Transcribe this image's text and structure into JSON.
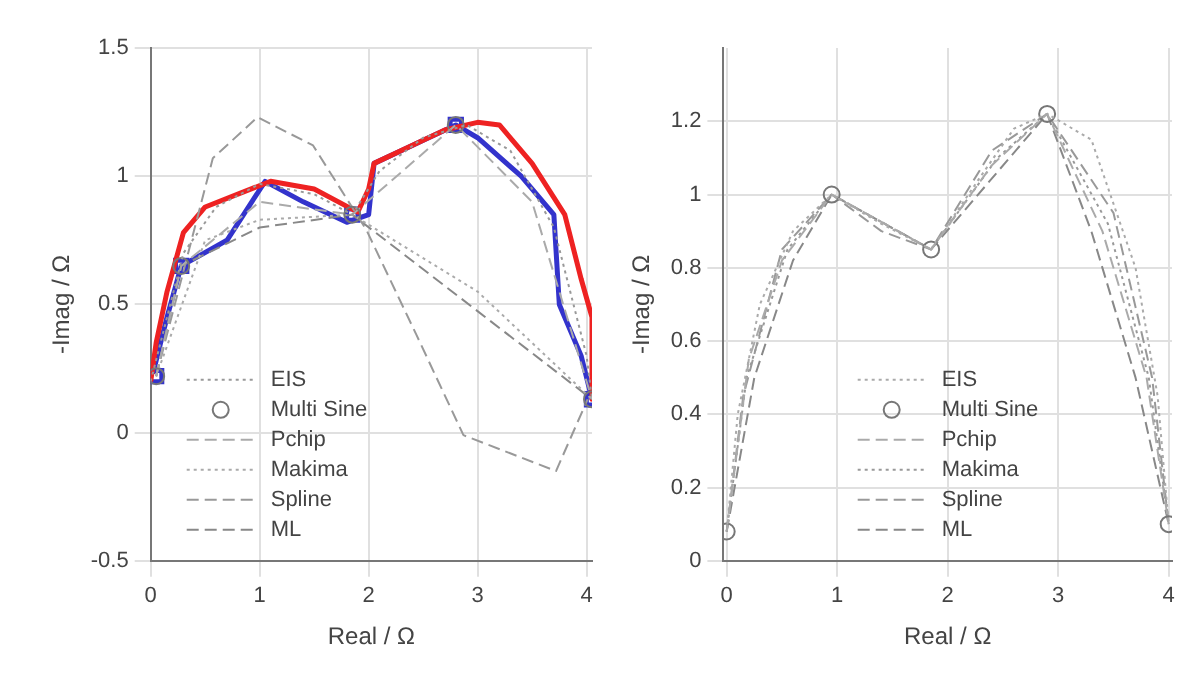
{
  "chart_data": [
    {
      "type": "line",
      "xlabel": "Real / Ω",
      "ylabel": "-Imag / Ω",
      "xlim": [
        0,
        4.05
      ],
      "ylim": [
        -0.5,
        1.5
      ],
      "xticks": [
        0,
        1,
        2,
        3,
        4
      ],
      "yticks": [
        -0.5,
        0,
        0.5,
        1,
        1.5
      ],
      "grid": true,
      "legend": "bottom left",
      "series": [
        {
          "name": "EIS",
          "color": "#999999",
          "line_style": "dotted",
          "marker": "none",
          "x": [
            0,
            0.3,
            0.6,
            1,
            1.5,
            1.85,
            2.1,
            2.5,
            2.9,
            3.3,
            3.7,
            4.0,
            4.05
          ],
          "values": [
            0.2,
            0.7,
            0.88,
            0.97,
            0.93,
            0.85,
            1.02,
            1.15,
            1.2,
            1.1,
            0.8,
            0.3,
            0.13
          ]
        },
        {
          "name": "Multi Sine",
          "type": "scatter",
          "color": "#777777",
          "marker": "circle",
          "x": [
            0.05,
            0.28,
            1.85,
            2.8,
            4.05
          ],
          "values": [
            0.22,
            0.65,
            0.85,
            1.2,
            0.13
          ]
        },
        {
          "name": "Pchip",
          "color": "#aaaaaa",
          "line_style": "dashed",
          "marker": "none",
          "x": [
            0.05,
            0.28,
            1,
            1.85,
            2.8,
            3.5,
            4.05
          ],
          "values": [
            0.22,
            0.65,
            0.9,
            0.85,
            1.2,
            0.9,
            0.13
          ]
        },
        {
          "name": "Makima",
          "color": "#aaaaaa",
          "line_style": "dotted",
          "marker": "none",
          "x": [
            0.05,
            0.5,
            1,
            1.85,
            3,
            4.05
          ],
          "values": [
            0.22,
            0.75,
            0.83,
            0.85,
            0.55,
            0.13
          ]
        },
        {
          "name": "Spline",
          "color": "#999999",
          "line_style": "dashed",
          "marker": "none",
          "x": [
            0.05,
            0.57,
            0.98,
            1.49,
            1.98,
            2.44,
            2.87,
            3.72,
            4.01
          ],
          "values": [
            0.22,
            1.07,
            1.23,
            1.12,
            0.79,
            0.38,
            -0.01,
            -0.15,
            0.13
          ]
        },
        {
          "name": "ML",
          "color": "#888888",
          "line_style": "dashed",
          "marker": "none",
          "x": [
            0.05,
            0.28,
            1,
            1.85,
            4.05
          ],
          "values": [
            0.22,
            0.65,
            0.8,
            0.85,
            0.13
          ]
        },
        {
          "color": "#ee2222",
          "line_style": "solid",
          "marker": "none",
          "x": [
            0,
            0.05,
            0.15,
            0.3,
            0.5,
            0.8,
            1.1,
            1.5,
            1.9,
            2.0,
            2.05,
            2.3,
            2.7,
            3.0,
            3.2,
            3.5,
            3.8,
            3.95,
            4.05,
            4.05
          ],
          "values": [
            0.2,
            0.35,
            0.55,
            0.78,
            0.88,
            0.93,
            0.98,
            0.95,
            0.86,
            0.95,
            1.05,
            1.1,
            1.18,
            1.21,
            1.2,
            1.05,
            0.85,
            0.6,
            0.45,
            0.13
          ]
        },
        {
          "color": "#3333cc",
          "line_style": "solid",
          "marker": "none",
          "x": [
            0.02,
            0.15,
            0.28,
            0.7,
            1.05,
            1.4,
            1.8,
            2.0,
            2.05,
            2.4,
            2.8,
            3.0,
            3.4,
            3.7,
            3.75,
            3.95,
            4.05
          ],
          "values": [
            0.23,
            0.45,
            0.65,
            0.75,
            0.98,
            0.9,
            0.82,
            0.85,
            1.05,
            1.12,
            1.2,
            1.15,
            1.0,
            0.85,
            0.5,
            0.3,
            0.13
          ]
        },
        {
          "type": "scatter",
          "color": "#3333cc",
          "marker": "square",
          "x": [
            0.05,
            0.28,
            1.85,
            2.8,
            4.05
          ],
          "values": [
            0.22,
            0.65,
            0.85,
            1.2,
            0.13
          ]
        }
      ]
    },
    {
      "type": "line",
      "xlabel": "Real / Ω",
      "ylabel": "-Imag / Ω",
      "xlim": [
        -0.03,
        4.03
      ],
      "ylim": [
        0,
        1.4
      ],
      "xticks": [
        0,
        1,
        2,
        3,
        4
      ],
      "yticks": [
        0,
        0.2,
        0.4,
        0.6,
        0.8,
        1,
        1.2
      ],
      "grid": true,
      "legend": "bottom",
      "series": [
        {
          "name": "EIS",
          "color": "#aaaaaa",
          "line_style": "dotted",
          "marker": "none",
          "x": [
            0,
            0.1,
            0.3,
            0.6,
            0.95,
            1.4,
            1.85,
            2.3,
            2.6,
            2.9,
            3.3,
            3.7,
            3.9,
            4.0
          ],
          "values": [
            0.08,
            0.4,
            0.7,
            0.9,
            1.0,
            0.92,
            0.85,
            1.05,
            1.18,
            1.22,
            1.15,
            0.8,
            0.45,
            0.1
          ]
        },
        {
          "name": "Multi Sine",
          "type": "scatter",
          "color": "#777777",
          "marker": "circle",
          "x": [
            0,
            0.95,
            1.85,
            2.9,
            4.0
          ],
          "values": [
            0.08,
            1.0,
            0.85,
            1.22,
            0.1
          ]
        },
        {
          "name": "Pchip",
          "color": "#aaaaaa",
          "line_style": "dashed",
          "marker": "none",
          "x": [
            0,
            0.2,
            0.5,
            0.95,
            1.85,
            2.4,
            2.9,
            3.4,
            3.8,
            4.0
          ],
          "values": [
            0.08,
            0.55,
            0.82,
            1.0,
            0.85,
            1.08,
            1.22,
            0.9,
            0.5,
            0.1
          ]
        },
        {
          "name": "Makima",
          "color": "#999999",
          "line_style": "dotted",
          "marker": "none",
          "x": [
            0,
            0.18,
            0.55,
            0.95,
            1.85,
            2.45,
            2.9,
            3.45,
            3.82,
            4.0
          ],
          "values": [
            0.08,
            0.5,
            0.85,
            1.0,
            0.85,
            1.1,
            1.22,
            0.92,
            0.5,
            0.1
          ]
        },
        {
          "name": "Spline",
          "color": "#999999",
          "line_style": "dashed",
          "marker": "none",
          "x": [
            0,
            0.15,
            0.5,
            0.95,
            1.4,
            1.85,
            2.4,
            2.9,
            3.5,
            3.85,
            4.0
          ],
          "values": [
            0.08,
            0.45,
            0.85,
            1.0,
            0.9,
            0.85,
            1.12,
            1.22,
            0.95,
            0.5,
            0.1
          ]
        },
        {
          "name": "ML",
          "color": "#888888",
          "line_style": "dashed",
          "marker": "none",
          "x": [
            0,
            0.25,
            0.6,
            0.95,
            1.85,
            2.9,
            3.3,
            3.7,
            4.0
          ],
          "values": [
            0.08,
            0.5,
            0.82,
            1.0,
            0.85,
            1.22,
            0.9,
            0.5,
            0.1
          ]
        }
      ]
    }
  ]
}
